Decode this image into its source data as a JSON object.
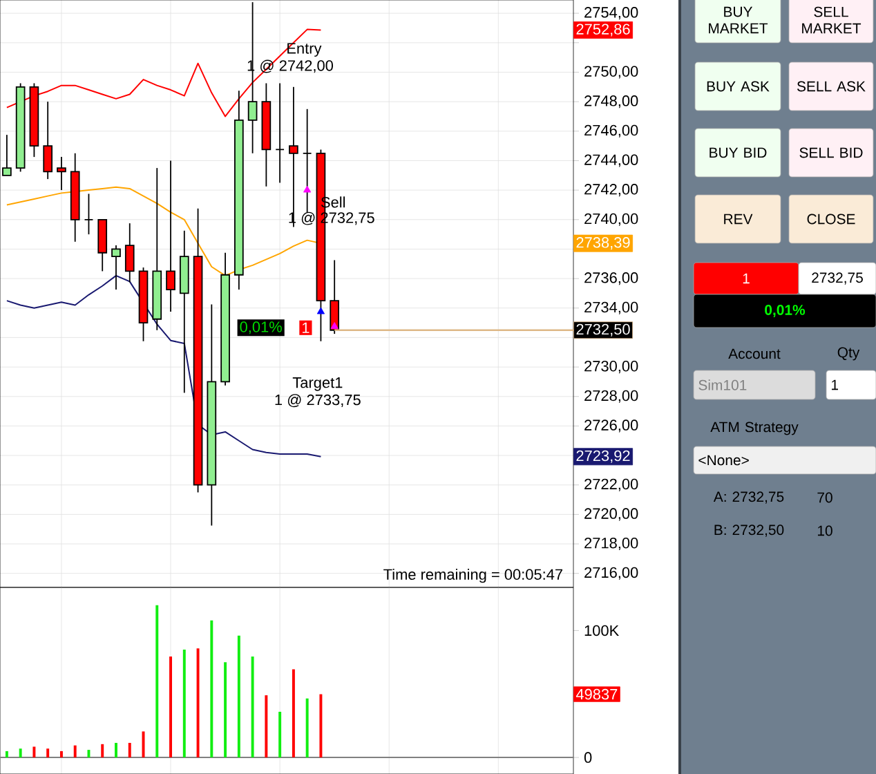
{
  "chart_data": [
    {
      "type": "candlestick",
      "ylim": [
        2715.05,
        2754.9
      ],
      "grid": true,
      "tick_labels": "y",
      "categories": [
        null,
        null,
        null,
        null,
        null,
        null,
        null,
        null,
        null,
        null,
        null,
        null,
        null,
        null,
        null,
        null,
        null,
        null,
        null,
        null,
        null,
        null,
        null,
        null,
        null
      ],
      "yticks": [
        {
          "value": 2716,
          "label": "2716,00"
        },
        {
          "value": 2718,
          "label": "2718,00"
        },
        {
          "value": 2720,
          "label": "2720,00"
        },
        {
          "value": 2722,
          "label": "2722,00"
        },
        {
          "value": 2724,
          "label": null
        },
        {
          "value": 2726,
          "label": "2726,00"
        },
        {
          "value": 2728,
          "label": "2728,00"
        },
        {
          "value": 2730,
          "label": "2730,00"
        },
        {
          "value": 2732,
          "label": null
        },
        {
          "value": 2734,
          "label": "2734,00"
        },
        {
          "value": 2736,
          "label": "2736,00"
        },
        {
          "value": 2738,
          "label": null
        },
        {
          "value": 2740,
          "label": "2740,00"
        },
        {
          "value": 2742,
          "label": "2742,00"
        },
        {
          "value": 2744,
          "label": "2744,00"
        },
        {
          "value": 2746,
          "label": "2746,00"
        },
        {
          "value": 2748,
          "label": "2748,00"
        },
        {
          "value": 2750,
          "label": "2750,00"
        },
        {
          "value": 2752,
          "label": null
        },
        {
          "value": 2754,
          "label": "2754,00"
        }
      ],
      "series": [
        {
          "type": "line",
          "color": "#ff0000",
          "values": [
            2747.6,
            2748.0,
            2748.4,
            2748.7,
            2749.1,
            2749.1,
            2748.8,
            2748.5,
            2748.2,
            2748.5,
            2749.5,
            2749.1,
            2748.8,
            2748.4,
            2750.6,
            2748.6,
            2747.0,
            2748.2,
            2749.3,
            2750.2,
            2751.1,
            2752.0,
            2752.9,
            2752.86,
            null
          ]
        },
        {
          "type": "line",
          "color": "#ffa500",
          "values": [
            2741.0,
            2741.2,
            2741.4,
            2741.6,
            2741.8,
            2741.9,
            2742.0,
            2742.1,
            2742.2,
            2742.1,
            2741.6,
            2741.1,
            2740.5,
            2740.0,
            2738.4,
            2736.8,
            2736.2,
            2736.6,
            2736.9,
            2737.3,
            2737.7,
            2738.2,
            2738.6,
            2738.39,
            null
          ]
        },
        {
          "type": "line",
          "color": "#191970",
          "values": [
            2734.5,
            2734.2,
            2734.0,
            2734.2,
            2734.4,
            2734.2,
            2734.9,
            2735.5,
            2736.2,
            2735.8,
            null,
            2732.9,
            2731.8,
            2731.6,
            2726.1,
            2725.4,
            2725.6,
            2725.0,
            2724.4,
            2724.2,
            2724.1,
            2724.1,
            2724.1,
            2723.92,
            null
          ]
        },
        {
          "type": "scatter",
          "marker": "triangle",
          "values": [
            null,
            null,
            null,
            null,
            null,
            null,
            null,
            null,
            null,
            null,
            null,
            null,
            null,
            null,
            null,
            null,
            null,
            null,
            null,
            null,
            null,
            null,
            2742.0,
            2733.75,
            2732.75
          ],
          "colors": [
            "#ff00ff",
            "#ff00ff",
            "#ff00ff",
            "#ff00ff",
            "#ff00ff",
            "#ff00ff",
            "#ff00ff",
            "#ff00ff",
            "#ff00ff",
            "#ff00ff",
            "#ff00ff",
            "#ff00ff",
            "#ff00ff",
            "#ff00ff",
            "#ff00ff",
            "#ff00ff",
            "#ff00ff",
            "#ff00ff",
            "#ff00ff",
            "#ff00ff",
            "#ff00ff",
            "#ff00ff",
            "#ff00ff",
            "#0000ff",
            "#ff00ff"
          ]
        },
        {
          "type": "candlestick",
          "ohlc": [
            [
              2743.0,
              2745.75,
              2743.0,
              2743.5
            ],
            [
              2743.5,
              2749.25,
              2743.25,
              2749.0
            ],
            [
              2749.0,
              2749.25,
              2744.25,
              2745.0
            ],
            [
              2745.0,
              2748.0,
              2742.75,
              2743.25
            ],
            [
              2743.5,
              2744.25,
              2742.0,
              2743.25
            ],
            [
              2743.25,
              2744.5,
              2738.5,
              2740.0
            ],
            [
              2740.0,
              2741.75,
              2739.0,
              2740.0
            ],
            [
              2740.0,
              2740.0,
              2736.5,
              2737.75
            ],
            [
              2737.5,
              2738.25,
              2735.25,
              2738.0
            ],
            [
              2738.25,
              2739.75,
              2735.75,
              2736.5
            ],
            [
              2736.5,
              2736.75,
              2731.75,
              2733.0
            ],
            [
              2733.25,
              2743.5,
              2732.5,
              2736.5
            ],
            [
              2736.5,
              2744.0,
              2733.75,
              2735.25
            ],
            [
              2735.0,
              2739.25,
              2728.25,
              2737.5
            ],
            [
              2737.5,
              2740.75,
              2721.5,
              2722.0
            ],
            [
              2722.0,
              2734.25,
              2719.25,
              2729.0
            ],
            [
              2729.0,
              2737.75,
              2728.75,
              2736.25
            ],
            [
              2736.25,
              2748.75,
              2735.25,
              2746.75
            ],
            [
              2746.75,
              2754.75,
              2744.5,
              2748.0
            ],
            [
              2748.0,
              2749.25,
              2742.25,
              2744.75
            ],
            [
              2744.75,
              2749.25,
              2742.5,
              2744.75
            ],
            [
              2745.0,
              2749.0,
              2739.5,
              2744.5
            ],
            [
              2744.5,
              2747.5,
              2740.5,
              2744.5
            ],
            [
              2744.5,
              2744.75,
              2731.75,
              2734.5
            ],
            [
              2734.5,
              2737.25,
              2732.25,
              2732.5
            ]
          ],
          "colors": [
            "#90ee90",
            "#90ee90",
            "#ff0000",
            "#ff0000",
            "#ff0000",
            "#ff0000",
            "#000000",
            "#ff0000",
            "#90ee90",
            "#ff0000",
            "#ff0000",
            "#90ee90",
            "#ff0000",
            "#90ee90",
            "#ff0000",
            "#90ee90",
            "#90ee90",
            "#90ee90",
            "#90ee90",
            "#ff0000",
            "#000000",
            "#ff0000",
            "#000000",
            "#ff0000",
            "#ff0000"
          ]
        }
      ],
      "ref_lines": [
        {
          "axis": "y",
          "value": 2732.5,
          "label": "2732,50",
          "color": "#deb887"
        }
      ],
      "annotations": [
        "Entry",
        "1 @ 2742,00",
        "Sell",
        "1 @ 2732,75",
        "Target1",
        "1 @ 2733,75",
        "0,01%",
        "1",
        "Time remaining = 00:05:47",
        "2752,86",
        "2738,39",
        "2723,92"
      ]
    },
    {
      "type": "bar",
      "ylim": [
        -13000,
        134000
      ],
      "grid": "x",
      "tick_labels": "y",
      "categories": [
        null,
        null,
        null,
        null,
        null,
        null,
        null,
        null,
        null,
        null,
        null,
        null,
        null,
        null,
        null,
        null,
        null,
        null,
        null,
        null,
        null,
        null,
        null,
        null,
        null,
        null,
        null,
        null,
        null,
        null,
        null,
        null,
        null,
        null,
        null,
        null,
        null,
        null,
        null,
        null,
        null,
        null
      ],
      "annotations": [
        {
          "text": "49837",
          "y": 49837
        }
      ],
      "yticks": [
        {
          "value": 0,
          "label": "0"
        },
        {
          "value": 100000,
          "label": "100K"
        }
      ],
      "series": [
        {
          "values": [
            5000,
            7000,
            8500,
            7000,
            5000,
            9500,
            6000,
            10500,
            11500,
            11500,
            20500,
            120000,
            79500,
            85000,
            86000,
            108000,
            75000,
            96000,
            79500,
            49000,
            36000,
            69500,
            46500,
            49837,
            null,
            null,
            null,
            null,
            null,
            null,
            null,
            null,
            null,
            null,
            null,
            null,
            null,
            null,
            null,
            null,
            null,
            null
          ],
          "colors": [
            "#11ee11",
            "#11ee11",
            "#ff0000",
            "#ff0000",
            "#ff0000",
            "#ff0000",
            "#11ee11",
            "#ff0000",
            "#11ee11",
            "#ff0000",
            "#ff0000",
            "#11ee11",
            "#ff0000",
            "#11ee11",
            "#ff0000",
            "#11ee11",
            "#11ee11",
            "#11ee11",
            "#11ee11",
            "#ff0000",
            "#11ee11",
            "#ff0000",
            "#11ee11",
            "#ff0000",
            "#11ee11",
            "#11ee11",
            "#11ee11",
            "#11ee11",
            "#11ee11",
            "#11ee11",
            "#11ee11",
            "#11ee11",
            "#11ee11",
            "#11ee11",
            "#11ee11",
            "#11ee11",
            "#11ee11",
            "#11ee11",
            "#11ee11",
            "#11ee11",
            "#11ee11",
            "#11ee11"
          ]
        }
      ]
    },
    {
      "type": "other",
      "annotations": [
        "BUY MARKET",
        "SELL MARKET",
        "BUY ASK",
        "SELL ASK",
        "BUY BID",
        "SELL BID",
        "REV",
        "CLOSE",
        "1",
        "2732,75",
        "0,01%",
        "Account",
        "Qty",
        "Sim101",
        "1",
        "ATM Strategy",
        "<None>",
        "A: 2732,75",
        "70",
        "B: 2732,50",
        "10"
      ]
    }
  ]
}
